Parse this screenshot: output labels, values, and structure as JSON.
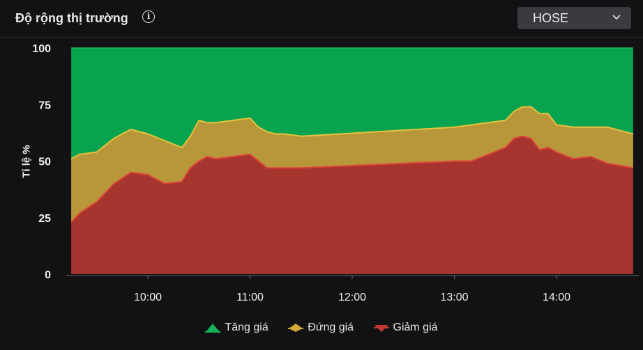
{
  "header": {
    "title": "Độ rộng thị trường",
    "info_icon": "info-icon",
    "exchange": {
      "selected": "HOSE",
      "icon": "chevron-down-icon"
    }
  },
  "chart_data": {
    "type": "area",
    "stacked": true,
    "ylabel": "Tỉ lệ %",
    "ylim": [
      0,
      100
    ],
    "yticks": [
      "0",
      "25",
      "50",
      "75",
      "100"
    ],
    "xticks": [
      "10:00",
      "11:00",
      "12:00",
      "13:00",
      "14:00"
    ],
    "grid": false,
    "legend_position": "bottom",
    "x": [
      "09:15",
      "09:20",
      "09:30",
      "09:40",
      "09:50",
      "10:00",
      "10:10",
      "10:20",
      "10:25",
      "10:30",
      "10:35",
      "10:40",
      "10:50",
      "11:00",
      "11:05",
      "11:10",
      "11:15",
      "11:20",
      "11:30",
      "13:00",
      "13:10",
      "13:20",
      "13:30",
      "13:35",
      "13:40",
      "13:45",
      "13:50",
      "13:55",
      "14:00",
      "14:10",
      "14:20",
      "14:30",
      "14:45"
    ],
    "series": [
      {
        "name": "Giảm giá",
        "color": "#c23a32",
        "values": [
          23,
          27,
          32,
          40,
          45,
          44,
          40,
          41,
          47,
          50,
          52,
          51,
          52,
          53,
          50,
          47,
          47,
          47,
          47,
          50,
          50,
          53,
          56,
          60,
          61,
          60,
          55,
          56,
          54,
          51,
          52,
          49,
          47
        ]
      },
      {
        "name": "Đứng giá",
        "color": "#d4a838",
        "values": [
          28,
          26,
          22,
          20,
          19,
          18,
          19,
          15,
          14,
          18,
          15,
          16,
          16,
          16,
          15,
          16,
          15,
          15,
          14,
          15,
          16,
          14,
          12,
          12,
          13,
          14,
          16,
          15,
          12,
          14,
          13,
          16,
          15
        ]
      },
      {
        "name": "Tăng giá",
        "color": "#14b35a",
        "values": [
          49,
          47,
          46,
          40,
          36,
          38,
          41,
          44,
          39,
          32,
          33,
          33,
          32,
          31,
          35,
          37,
          38,
          38,
          39,
          35,
          34,
          33,
          32,
          28,
          26,
          26,
          29,
          29,
          34,
          35,
          35,
          35,
          38
        ]
      }
    ]
  },
  "legend": [
    {
      "label": "Tăng giá",
      "color": "#14b35a",
      "icon": "up-triangle-icon"
    },
    {
      "label": "Đứng giá",
      "color": "#d4a838",
      "icon": "diamond-icon"
    },
    {
      "label": "Giảm giá",
      "color": "#c23a32",
      "icon": "down-triangle-icon"
    }
  ]
}
